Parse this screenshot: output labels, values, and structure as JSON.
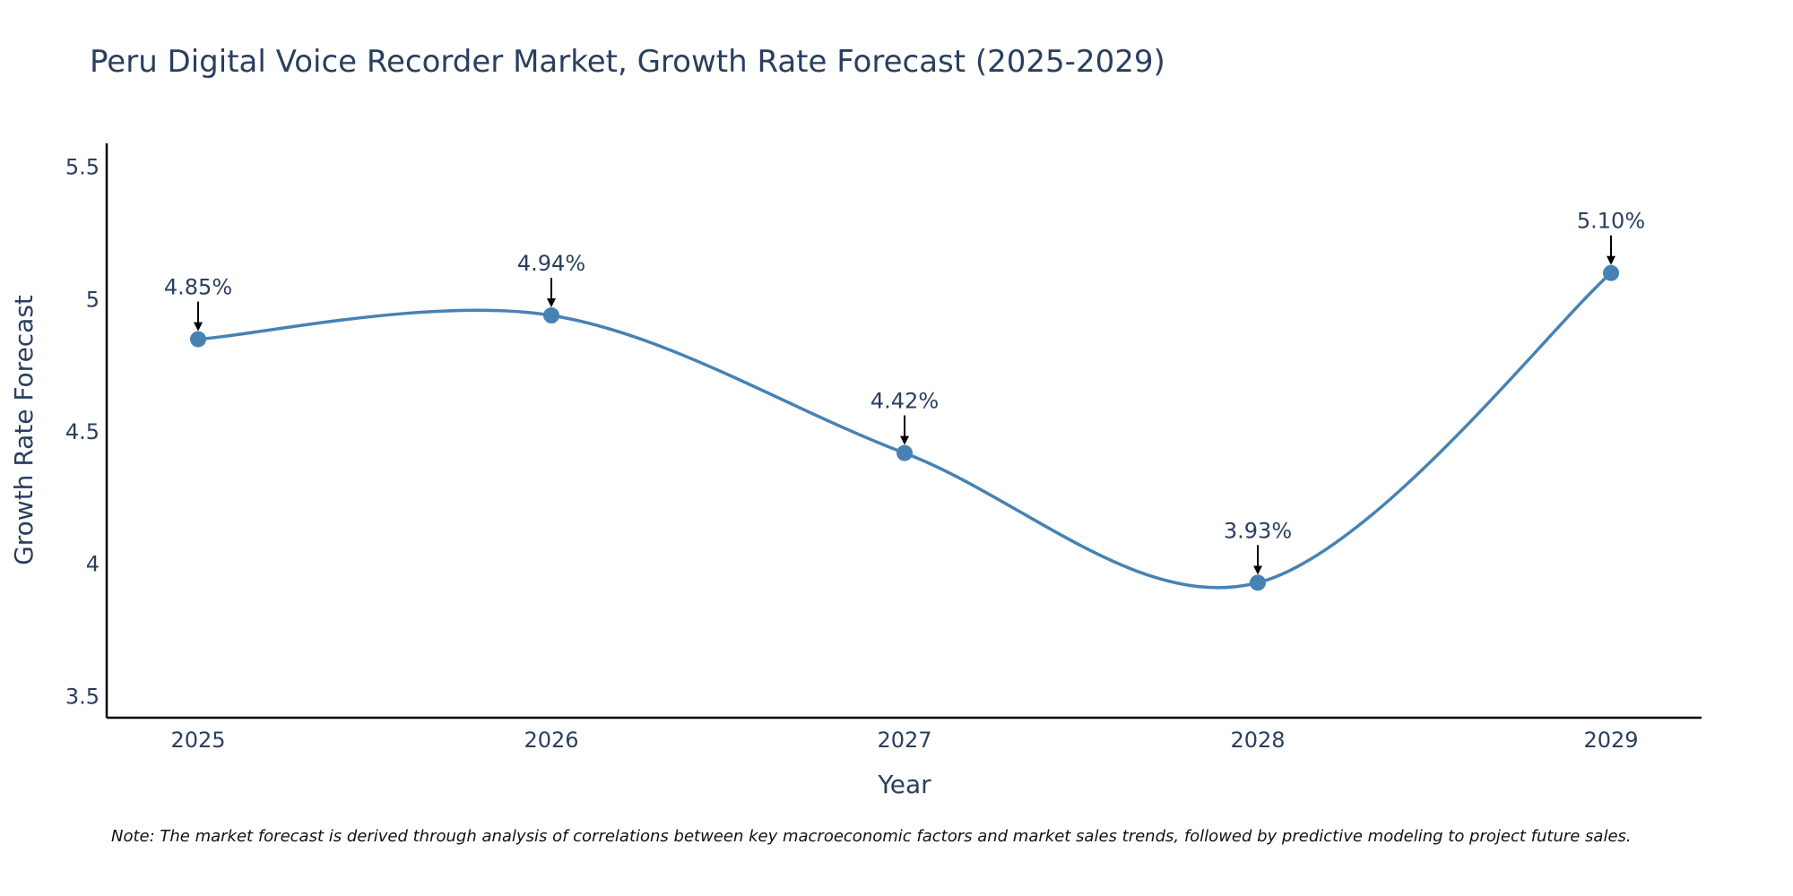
{
  "chart_data": {
    "type": "line",
    "title": "Peru Digital Voice Recorder Market, Growth Rate Forecast (2025-2029)",
    "xlabel": "Year",
    "ylabel": "Growth Rate Forecast",
    "categories": [
      "2025",
      "2026",
      "2027",
      "2028",
      "2029"
    ],
    "series": [
      {
        "name": "Growth Rate Forecast",
        "values": [
          4.85,
          4.94,
          4.42,
          3.93,
          5.1
        ],
        "labels": [
          "4.85%",
          "4.94%",
          "4.42%",
          "3.93%",
          "5.10%"
        ]
      }
    ],
    "ylim": [
      3.42,
      5.59
    ],
    "yticks": [
      3.5,
      4,
      4.5,
      5,
      5.5
    ],
    "ytick_labels": [
      "3.5",
      "4",
      "4.5",
      "5",
      "5.5"
    ],
    "line_shape": "spline",
    "grid": false,
    "legend": "none",
    "note": "Note: The market forecast is derived through analysis of correlations between key macroeconomic factors and market sales trends, followed by predictive modeling to project future sales.",
    "colors": {
      "line": "#4682b4",
      "marker": "#4682b4",
      "arrow": "#000000",
      "axis": "#000000",
      "text": "#2a3f5f"
    }
  }
}
